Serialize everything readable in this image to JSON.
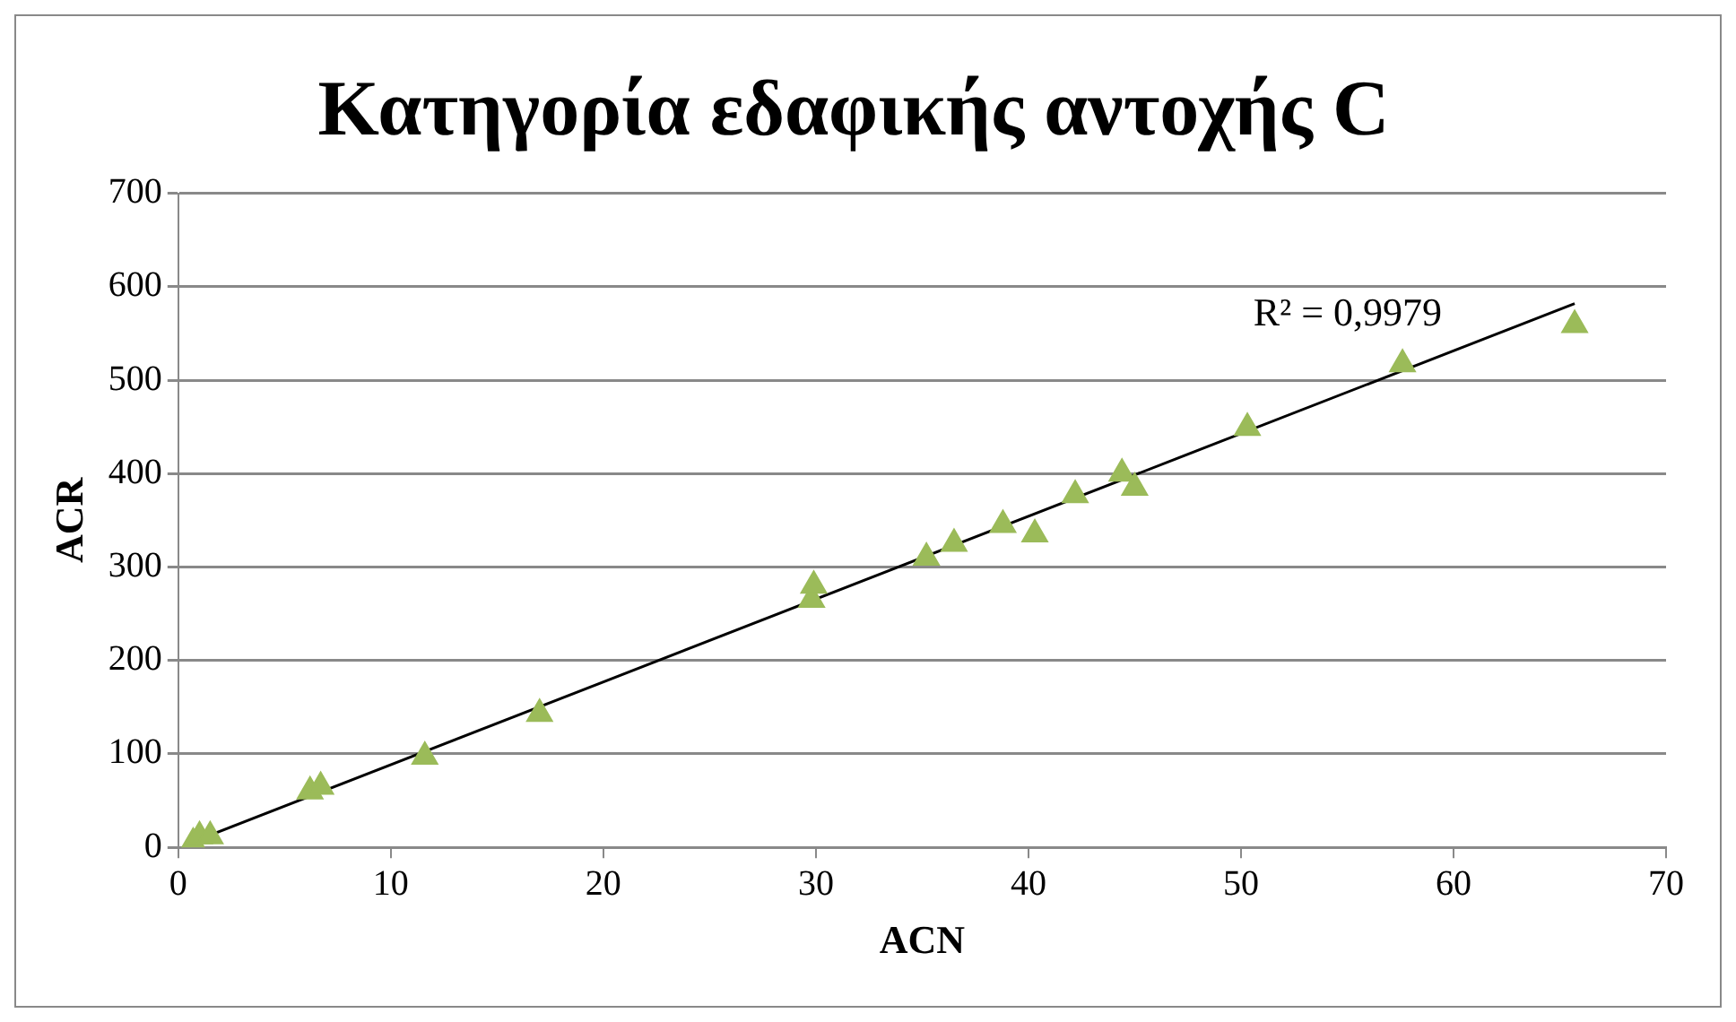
{
  "chart_data": {
    "type": "scatter",
    "title": "Κατηγορία εδαφικής αντοχής C",
    "xlabel": "ACN",
    "ylabel": "ACR",
    "xlim": [
      0,
      70
    ],
    "xticks": [
      0,
      10,
      20,
      30,
      40,
      50,
      60,
      70
    ],
    "ylim": [
      0,
      700
    ],
    "yticks": [
      0,
      100,
      200,
      300,
      400,
      500,
      600,
      700
    ],
    "grid": "y",
    "legend": false,
    "series": [
      {
        "marker": "triangle",
        "color": "#9bbb59",
        "x": [
          0.7,
          1.0,
          1.5,
          6.2,
          6.7,
          11.6,
          17,
          29.8,
          29.9,
          35.2,
          36.5,
          38.8,
          40.3,
          42.2,
          44.4,
          45,
          50.3,
          57.6,
          65.7
        ],
        "values": [
          5,
          12,
          12,
          60,
          65,
          97,
          143,
          265,
          280,
          310,
          325,
          345,
          335,
          377,
          400,
          385,
          449,
          517,
          559
        ]
      },
      {
        "type": "line",
        "marker": "none",
        "color": "#000000",
        "x": [
          0.7,
          65.7
        ],
        "values": [
          6,
          582
        ]
      }
    ],
    "annotations": [
      "R² = 0,9979"
    ]
  }
}
